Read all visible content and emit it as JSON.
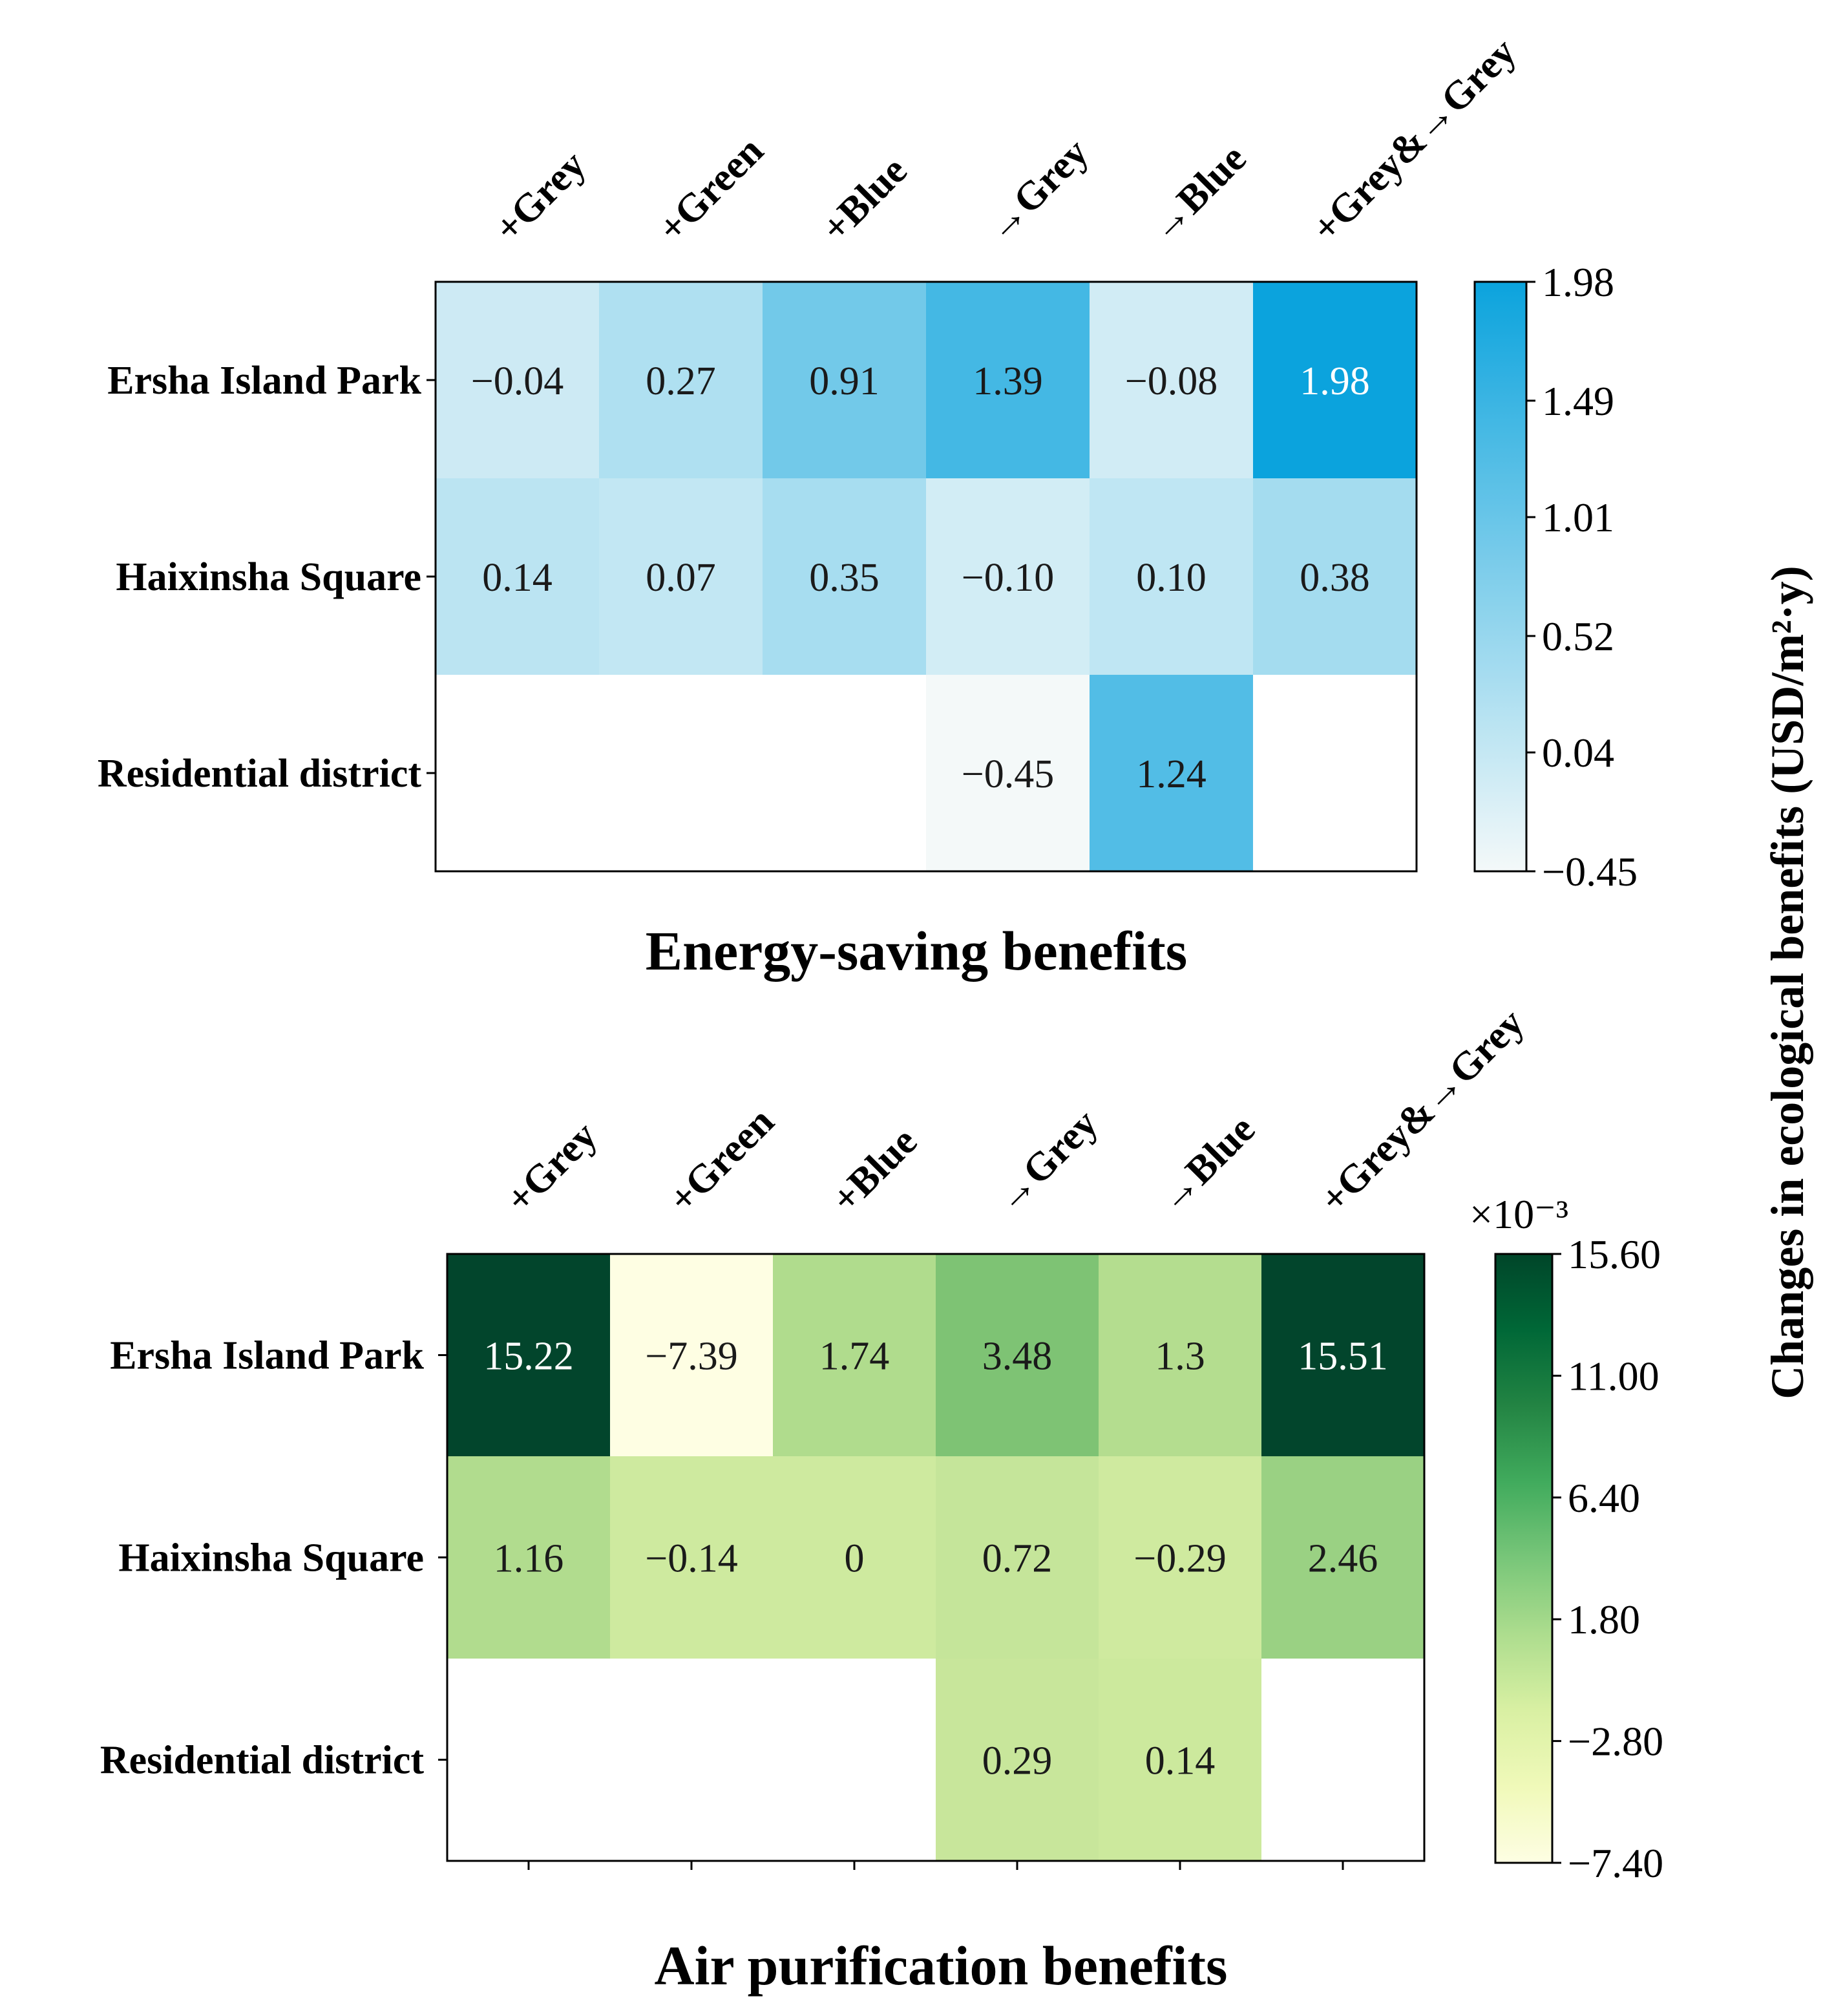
{
  "chart_data": [
    {
      "type": "heatmap",
      "title": "Energy-saving benefits",
      "columns": [
        "+Grey",
        "+Green",
        "+Blue",
        "→Grey",
        "→Blue",
        "+Grey&→Grey"
      ],
      "rows": [
        "Ersha Island Park",
        "Haixinsha Square",
        "Residential district"
      ],
      "values": [
        [
          -0.04,
          0.27,
          0.91,
          1.39,
          -0.08,
          1.98
        ],
        [
          0.14,
          0.07,
          0.35,
          -0.1,
          0.1,
          0.38
        ],
        [
          null,
          null,
          null,
          -0.45,
          1.24,
          null
        ]
      ],
      "labels": [
        [
          "−0.04",
          "0.27",
          "0.91",
          "1.39",
          "−0.08",
          "1.98"
        ],
        [
          "0.14",
          "0.07",
          "0.35",
          "−0.10",
          "0.10",
          "0.38"
        ],
        [
          "",
          "",
          "",
          "−0.45",
          "1.24",
          ""
        ]
      ],
      "colorbar": {
        "ticks": [
          "1.98",
          "1.49",
          "1.01",
          "0.52",
          "0.04",
          "−0.45"
        ],
        "tick_values": [
          1.98,
          1.49,
          1.01,
          0.52,
          0.04,
          -0.45
        ],
        "vmin": -0.45,
        "vmax": 1.98,
        "color_low": "#f4f9f9",
        "color_high": "#0ba3dd",
        "multiplier": ""
      }
    },
    {
      "type": "heatmap",
      "title": "Air purification benefits",
      "columns": [
        "+Grey",
        "+Green",
        "+Blue",
        "→Grey",
        "→Blue",
        "+Grey&→Grey"
      ],
      "rows": [
        "Ersha Island Park",
        "Haixinsha Square",
        "Residential district"
      ],
      "values": [
        [
          15.22,
          -7.39,
          1.74,
          3.48,
          1.3,
          15.51
        ],
        [
          1.16,
          -0.14,
          0,
          0.72,
          -0.29,
          2.46
        ],
        [
          null,
          null,
          null,
          0.29,
          0.14,
          null
        ]
      ],
      "labels": [
        [
          "15.22",
          "−7.39",
          "1.74",
          "3.48",
          "1.3",
          "15.51"
        ],
        [
          "1.16",
          "−0.14",
          "0",
          "0.72",
          "−0.29",
          "2.46"
        ],
        [
          "",
          "",
          "",
          "0.29",
          "0.14",
          ""
        ]
      ],
      "cell_colors": [
        [
          "#02452c",
          "#fefee3",
          "#b0dc8d",
          "#7ec374",
          "#b4dd8f",
          "#02452c"
        ],
        [
          "#b1dc8e",
          "#ceea9f",
          "#ceea9f",
          "#c5e59a",
          "#cfea9f",
          "#9ad183"
        ],
        [
          null,
          null,
          null,
          "#c8e69b",
          "#cce99d",
          null
        ]
      ],
      "colorbar": {
        "ticks": [
          "15.60",
          "11.00",
          "6.40",
          "1.80",
          "−2.80",
          "−7.40"
        ],
        "tick_values": [
          15.6,
          11.0,
          6.4,
          1.8,
          -2.8,
          -7.4
        ],
        "vmin": -7.4,
        "vmax": 15.6,
        "gradient": [
          "#fefee3",
          "#f0f9b9",
          "#d9f0a3",
          "#addd8e",
          "#78c679",
          "#41ab5d",
          "#238443",
          "#006837",
          "#004529"
        ],
        "multiplier": "×10⁻³"
      }
    }
  ],
  "side_label": "Changes in ecological benefits (USD/m²·y)"
}
